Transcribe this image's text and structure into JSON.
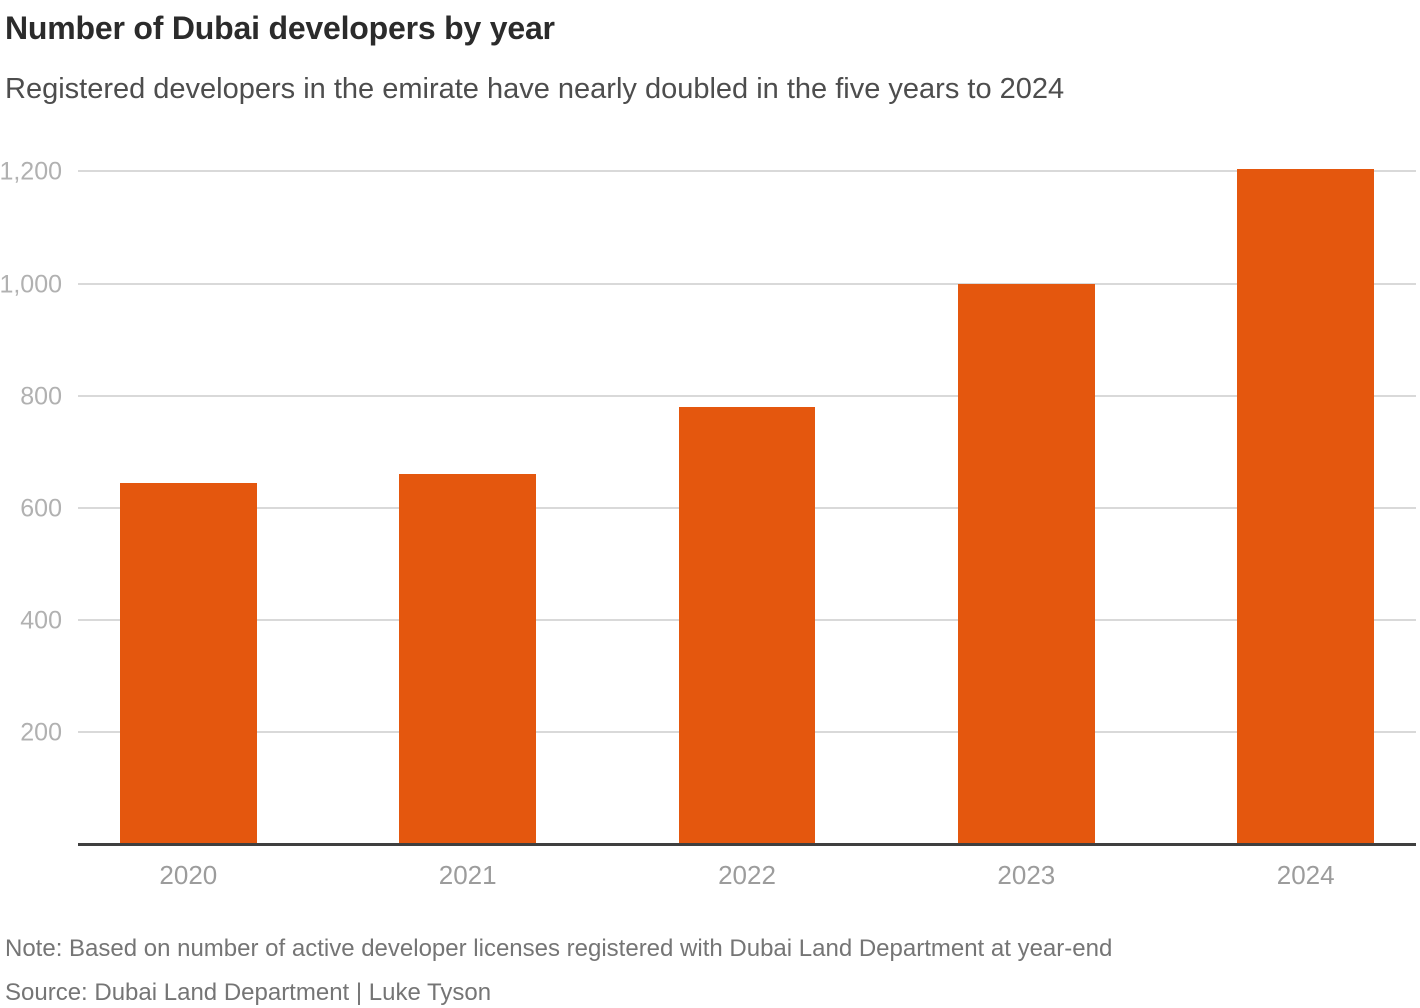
{
  "header": {
    "title": "Number of Dubai developers by year",
    "subtitle": "Registered developers in the emirate have nearly doubled in the five years to 2024"
  },
  "chart_data": {
    "type": "bar",
    "title": "Number of Dubai developers by year",
    "subtitle": "Registered developers in the emirate have nearly doubled in the five years to 2024",
    "categories": [
      "2020",
      "2021",
      "2022",
      "2023",
      "2024"
    ],
    "values": [
      645,
      660,
      780,
      1000,
      1205
    ],
    "xlabel": "",
    "ylabel": "",
    "ylim": [
      0,
      1200
    ],
    "yticks": [
      {
        "value": 200,
        "label": "200"
      },
      {
        "value": 400,
        "label": "400"
      },
      {
        "value": 600,
        "label": "600"
      },
      {
        "value": 800,
        "label": "800"
      },
      {
        "value": 1000,
        "label": "1,000"
      },
      {
        "value": 1200,
        "label": "1,200"
      }
    ],
    "grid": "horizontal-only",
    "legend_position": "none",
    "bar_color": "#E4570E"
  },
  "colors": {
    "bar": "#E4570E",
    "gridline": "#D9D9D9",
    "axis_line": "#3F3F3F",
    "title_text": "#2B2B2B",
    "subtitle_text": "#4D4D4D",
    "ytick_text": "#B1B1B1",
    "xtick_text": "#9C9C9C",
    "footer_text": "#757575",
    "background": "#FFFFFF"
  },
  "footer": {
    "note": "Note: Based on number of active developer licenses registered with Dubai Land Department at year-end",
    "source": "Source: Dubai Land Department | Luke Tyson"
  }
}
